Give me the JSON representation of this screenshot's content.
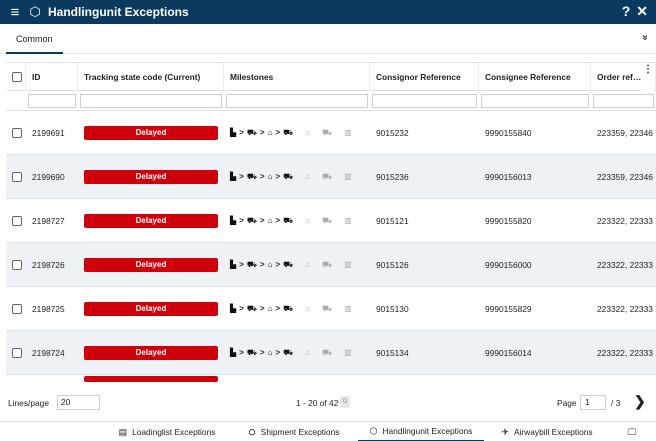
{
  "window": {
    "title": "Handlingunit Exceptions",
    "help": "?",
    "close": "✕",
    "menu_icon": "menu-icon",
    "title_icon": "cube-icon"
  },
  "tabs": {
    "active": "Common",
    "collapse": "»"
  },
  "columns": [
    "ID",
    "Tracking state code (Current)",
    "Milestones",
    "Consignor Reference",
    "Consignee Reference",
    "Order ref…"
  ],
  "rows": [
    {
      "id": "2199691",
      "state": "Delayed",
      "consignor": "9015232",
      "consignee": "9990155840",
      "order": "223359, 22346"
    },
    {
      "id": "2199690",
      "state": "Delayed",
      "consignor": "9015236",
      "consignee": "9990156013",
      "order": "223359, 22346"
    },
    {
      "id": "2198727",
      "state": "Delayed",
      "consignor": "9015121",
      "consignee": "9990155820",
      "order": "223322, 22333"
    },
    {
      "id": "2198726",
      "state": "Delayed",
      "consignor": "9015126",
      "consignee": "9990156000",
      "order": "223322, 22333"
    },
    {
      "id": "2198725",
      "state": "Delayed",
      "consignor": "9015130",
      "consignee": "9990155829",
      "order": "223322, 22333"
    },
    {
      "id": "2198724",
      "state": "Delayed",
      "consignor": "9015134",
      "consignee": "9990156014",
      "order": "223322, 22333"
    }
  ],
  "footer": {
    "lines_label": "Lines/page",
    "lines_value": "20",
    "range": "1 - 20 of 42",
    "selected": "0",
    "page_label": "Page",
    "page_value": "1",
    "page_total": "/ 3",
    "next": "❯"
  },
  "bottom_tabs": [
    {
      "label": "Loadinglist Exceptions",
      "icon": "▤"
    },
    {
      "label": "Shipment Exceptions",
      "icon": "⛭"
    },
    {
      "label": "Handlingunit Exceptions",
      "icon": "⬡"
    },
    {
      "label": "Airwaybill Exceptions",
      "icon": "✈"
    }
  ],
  "colors": {
    "titlebar": "#0b3a60",
    "delayed": "#d0000b",
    "alt_row": "#eef2f6"
  }
}
